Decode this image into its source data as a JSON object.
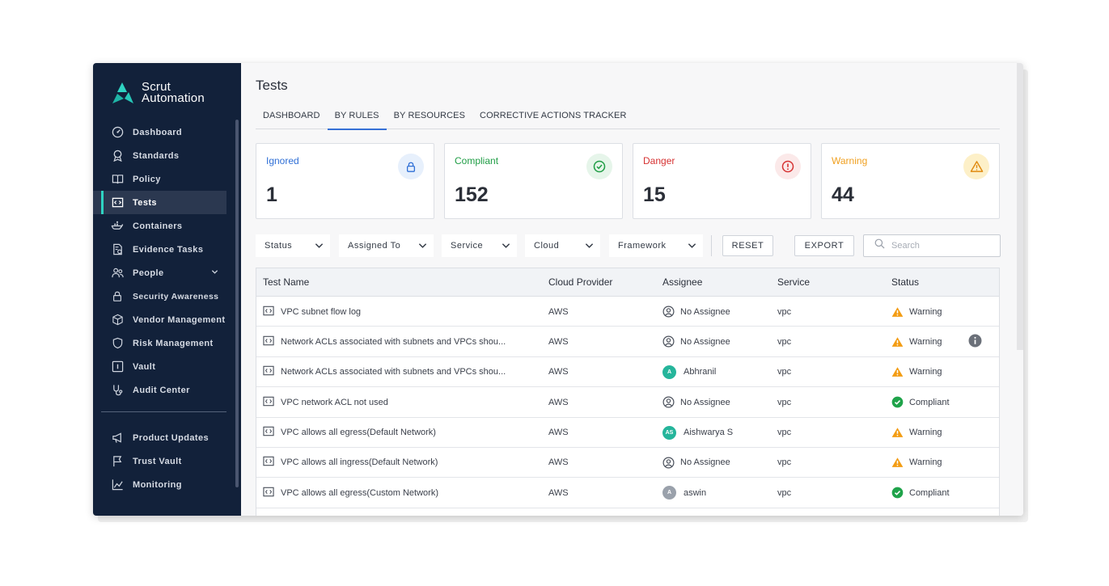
{
  "app": {
    "logo_line1": "Scrut",
    "logo_line2": "Automation",
    "brand_colors": {
      "sidebar": "#12213a",
      "accent": "#2fd3c2",
      "tab_active": "#3670d6"
    }
  },
  "sidebar": {
    "items": [
      {
        "label": "Dashboard",
        "icon": "dashboard-icon"
      },
      {
        "label": "Standards",
        "icon": "award-icon"
      },
      {
        "label": "Policy",
        "icon": "book-icon"
      },
      {
        "label": "Tests",
        "icon": "code-window-icon",
        "active": true
      },
      {
        "label": "Containers",
        "icon": "docker-icon"
      },
      {
        "label": "Evidence Tasks",
        "icon": "document-check-icon"
      },
      {
        "label": "People",
        "icon": "people-icon",
        "expandable": true
      },
      {
        "label": "Security Awareness",
        "icon": "lock-icon"
      },
      {
        "label": "Vendor Management",
        "icon": "box-icon"
      },
      {
        "label": "Risk Management",
        "icon": "shield-icon"
      },
      {
        "label": "Vault",
        "icon": "vault-icon"
      },
      {
        "label": "Audit Center",
        "icon": "stethoscope-icon"
      }
    ],
    "bottom_items": [
      {
        "label": "Product Updates",
        "icon": "megaphone-icon"
      },
      {
        "label": "Trust Vault",
        "icon": "flag-icon"
      },
      {
        "label": "Monitoring",
        "icon": "chart-line-icon"
      }
    ]
  },
  "page": {
    "title": "Tests",
    "tabs": [
      {
        "label": "DASHBOARD"
      },
      {
        "label": "BY RULES",
        "active": true
      },
      {
        "label": "BY RESOURCES"
      },
      {
        "label": "CORRECTIVE ACTIONS TRACKER"
      }
    ]
  },
  "cards": [
    {
      "label": "Ignored",
      "value": "1",
      "color": "#2f6fd6",
      "icon": "lock-icon",
      "icon_bg": "#e7f0fc"
    },
    {
      "label": "Compliant",
      "value": "152",
      "color": "#1f9d45",
      "icon": "check-circle-icon",
      "icon_bg": "#e6f5ea"
    },
    {
      "label": "Danger",
      "value": "15",
      "color": "#d63232",
      "icon": "alert-circle-icon",
      "icon_bg": "#fbe9e9"
    },
    {
      "label": "Warning",
      "value": "44",
      "color": "#f0a020",
      "icon": "warning-triangle-icon",
      "icon_bg": "#fdf0c8"
    }
  ],
  "filters": {
    "status": "Status",
    "assigned_to": "Assigned To",
    "service": "Service",
    "cloud": "Cloud",
    "framework": "Framework",
    "reset": "RESET",
    "export": "EXPORT",
    "search_placeholder": "Search"
  },
  "table": {
    "headers": {
      "name": "Test Name",
      "cloud": "Cloud Provider",
      "assignee": "Assignee",
      "service": "Service",
      "status": "Status"
    },
    "rows": [
      {
        "name": "VPC subnet flow log",
        "cloud": "AWS",
        "assignee": "No Assignee",
        "avatar": null,
        "service": "vpc",
        "status": "Warning"
      },
      {
        "name": "Network ACLs associated with subnets and VPCs shou...",
        "cloud": "AWS",
        "assignee": "No Assignee",
        "avatar": null,
        "service": "vpc",
        "status": "Warning",
        "info": true
      },
      {
        "name": "Network ACLs associated with subnets and VPCs shou...",
        "cloud": "AWS",
        "assignee": "Abhranil",
        "avatar": "A",
        "avatar_color": "#25b59b",
        "service": "vpc",
        "status": "Warning"
      },
      {
        "name": "VPC network ACL not used",
        "cloud": "AWS",
        "assignee": "No Assignee",
        "avatar": null,
        "service": "vpc",
        "status": "Compliant"
      },
      {
        "name": "VPC allows all egress(Default Network)",
        "cloud": "AWS",
        "assignee": "Aishwarya S",
        "avatar": "AS",
        "avatar_color": "#25b59b",
        "service": "vpc",
        "status": "Warning"
      },
      {
        "name": "VPC allows all ingress(Default Network)",
        "cloud": "AWS",
        "assignee": "No Assignee",
        "avatar": null,
        "service": "vpc",
        "status": "Warning"
      },
      {
        "name": "VPC allows all egress(Custom Network)",
        "cloud": "AWS",
        "assignee": "aswin",
        "avatar": "A",
        "avatar_color": "#9aa1ab",
        "service": "vpc",
        "status": "Compliant"
      }
    ]
  }
}
